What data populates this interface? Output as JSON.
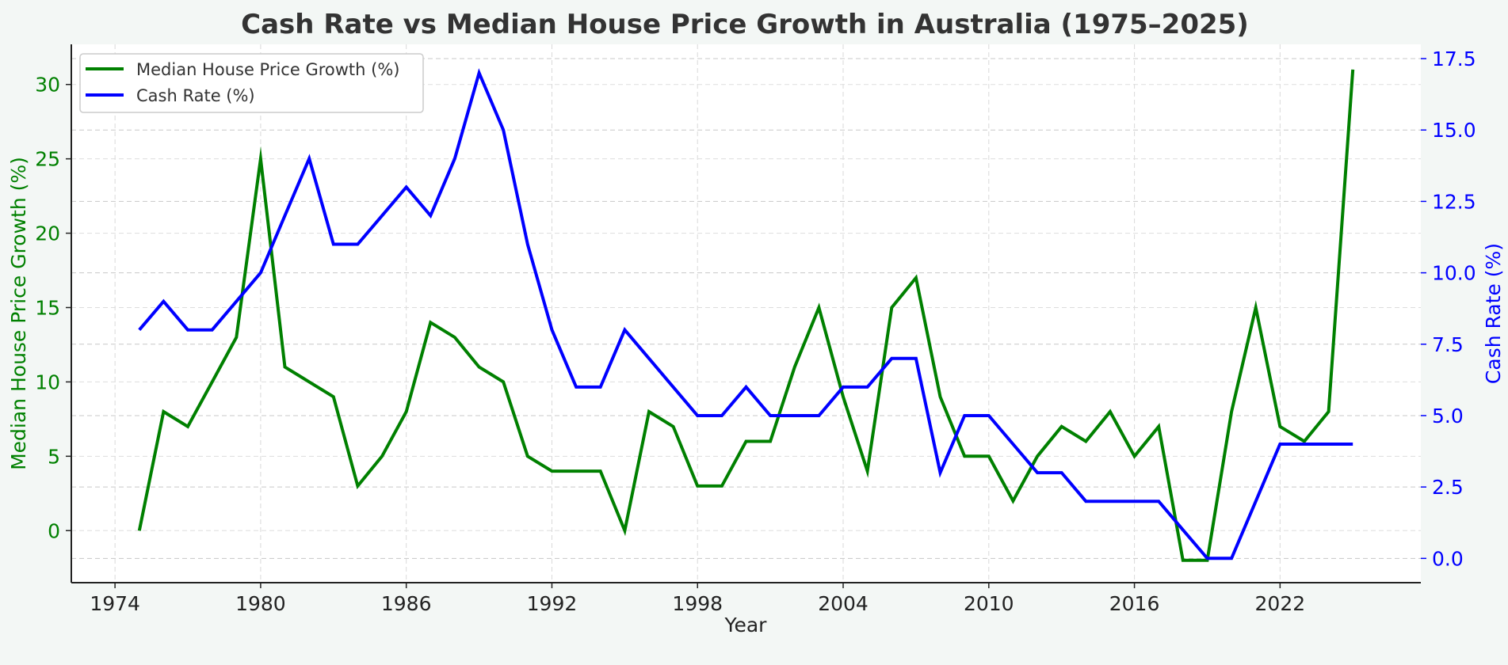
{
  "chart_data": {
    "type": "line",
    "title": "Cash Rate vs Median House Price Growth in Australia (1975–2025)",
    "xlabel": "Year",
    "ylabel_left": "Median House Price Growth (%)",
    "ylabel_right": "Cash Rate (%)",
    "xlim": [
      1972.2,
      2027.8
    ],
    "ylim_left": [
      -3.5,
      32.7
    ],
    "ylim_right": [
      -0.85,
      18.0
    ],
    "x_ticks": [
      1974,
      1980,
      1986,
      1992,
      1998,
      2004,
      2010,
      2016,
      2022
    ],
    "y_left_ticks": [
      0,
      5,
      10,
      15,
      20,
      25,
      30
    ],
    "y_right_ticks": [
      0.0,
      2.5,
      5.0,
      7.5,
      10.0,
      12.5,
      15.0,
      17.5
    ],
    "y_right_tick_labels": [
      "0.0",
      "2.5",
      "5.0",
      "7.5",
      "10.0",
      "12.5",
      "15.0",
      "17.5"
    ],
    "grid": true,
    "legend_position": "upper-left",
    "x": [
      1975,
      1976,
      1977,
      1978,
      1979,
      1980,
      1981,
      1982,
      1983,
      1984,
      1985,
      1986,
      1987,
      1988,
      1989,
      1990,
      1991,
      1992,
      1993,
      1994,
      1995,
      1996,
      1997,
      1998,
      1999,
      2000,
      2001,
      2002,
      2003,
      2004,
      2005,
      2006,
      2007,
      2008,
      2009,
      2010,
      2011,
      2012,
      2013,
      2014,
      2015,
      2016,
      2017,
      2018,
      2019,
      2020,
      2021,
      2022,
      2023,
      2024,
      2025
    ],
    "series": [
      {
        "name": "Median House Price Growth (%)",
        "axis": "left",
        "color": "#008000",
        "values": [
          0,
          8,
          7,
          10,
          13,
          25,
          11,
          10,
          9,
          3,
          5,
          8,
          14,
          13,
          11,
          10,
          5,
          4,
          4,
          4,
          0,
          8,
          7,
          3,
          3,
          6,
          6,
          11,
          15,
          9,
          4,
          15,
          17,
          9,
          5,
          5,
          2,
          5,
          7,
          6,
          8,
          5,
          7,
          -2,
          -2,
          8,
          15,
          7,
          6,
          8,
          31
        ]
      },
      {
        "name": "Cash Rate (%)",
        "axis": "right",
        "color": "#0000ff",
        "values": [
          8,
          9,
          8,
          8,
          9,
          10,
          12,
          14,
          11,
          11,
          12,
          13,
          12,
          14,
          17,
          15,
          11,
          8,
          6,
          6,
          8,
          7,
          6,
          5,
          5,
          6,
          5,
          5,
          5,
          6,
          6,
          7,
          7,
          3,
          5,
          5,
          4,
          3,
          3,
          2,
          2,
          2,
          2,
          1,
          0,
          0,
          2,
          4,
          4,
          4,
          4
        ]
      }
    ]
  }
}
